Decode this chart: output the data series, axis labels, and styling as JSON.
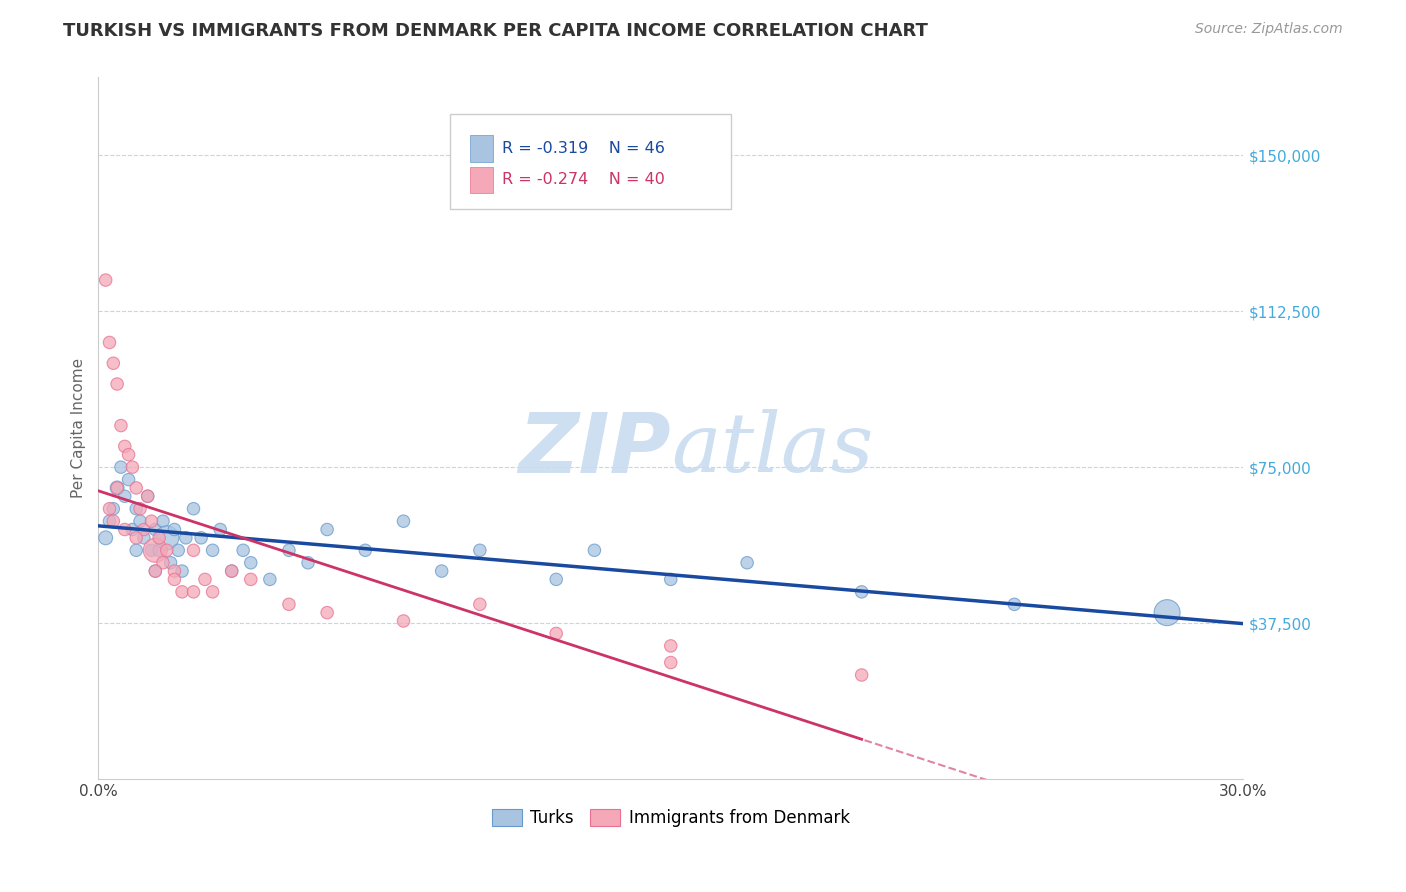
{
  "title": "TURKISH VS IMMIGRANTS FROM DENMARK PER CAPITA INCOME CORRELATION CHART",
  "source": "Source: ZipAtlas.com",
  "ylabel": "Per Capita Income",
  "xlim": [
    0.0,
    0.3
  ],
  "ylim": [
    0,
    168750
  ],
  "yticks": [
    0,
    37500,
    75000,
    112500,
    150000
  ],
  "ytick_labels": [
    "",
    "$37,500",
    "$75,000",
    "$112,500",
    "$150,000"
  ],
  "xticks": [
    0.0,
    0.05,
    0.1,
    0.15,
    0.2,
    0.25,
    0.3
  ],
  "xtick_labels": [
    "0.0%",
    "",
    "",
    "",
    "",
    "",
    "30.0%"
  ],
  "legend1_R": "-0.319",
  "legend1_N": "46",
  "legend2_R": "-0.274",
  "legend2_N": "40",
  "blue_color": "#A8C4E0",
  "pink_color": "#F4A8B8",
  "blue_edge_color": "#6699CC",
  "pink_edge_color": "#E87090",
  "blue_line_color": "#1A4AA0",
  "pink_line_color": "#CC3366",
  "watermark_color": "#C8DCF0",
  "turks_x": [
    0.002,
    0.003,
    0.004,
    0.005,
    0.006,
    0.007,
    0.008,
    0.009,
    0.01,
    0.01,
    0.011,
    0.012,
    0.013,
    0.014,
    0.015,
    0.015,
    0.016,
    0.017,
    0.018,
    0.019,
    0.02,
    0.021,
    0.022,
    0.023,
    0.025,
    0.027,
    0.03,
    0.032,
    0.035,
    0.038,
    0.04,
    0.045,
    0.05,
    0.055,
    0.06,
    0.07,
    0.08,
    0.09,
    0.1,
    0.12,
    0.13,
    0.15,
    0.17,
    0.2,
    0.24,
    0.28
  ],
  "turks_y": [
    58000,
    62000,
    65000,
    70000,
    75000,
    68000,
    72000,
    60000,
    65000,
    55000,
    62000,
    58000,
    68000,
    55000,
    60000,
    50000,
    55000,
    62000,
    58000,
    52000,
    60000,
    55000,
    50000,
    58000,
    65000,
    58000,
    55000,
    60000,
    50000,
    55000,
    52000,
    48000,
    55000,
    52000,
    60000,
    55000,
    62000,
    50000,
    55000,
    48000,
    55000,
    48000,
    52000,
    45000,
    42000,
    40000
  ],
  "turks_sizes": [
    100,
    80,
    80,
    100,
    80,
    80,
    80,
    80,
    80,
    80,
    80,
    80,
    80,
    80,
    80,
    80,
    80,
    80,
    300,
    80,
    80,
    80,
    80,
    80,
    80,
    80,
    80,
    80,
    80,
    80,
    80,
    80,
    80,
    80,
    80,
    80,
    80,
    80,
    80,
    80,
    80,
    80,
    80,
    80,
    80,
    350
  ],
  "denmark_x": [
    0.002,
    0.003,
    0.004,
    0.005,
    0.006,
    0.007,
    0.008,
    0.009,
    0.01,
    0.011,
    0.012,
    0.013,
    0.014,
    0.015,
    0.016,
    0.017,
    0.018,
    0.02,
    0.022,
    0.025,
    0.028,
    0.03,
    0.035,
    0.04,
    0.05,
    0.06,
    0.08,
    0.1,
    0.12,
    0.15,
    0.003,
    0.004,
    0.005,
    0.007,
    0.01,
    0.015,
    0.02,
    0.025,
    0.15,
    0.2
  ],
  "denmark_y": [
    120000,
    105000,
    100000,
    95000,
    85000,
    80000,
    78000,
    75000,
    70000,
    65000,
    60000,
    68000,
    62000,
    55000,
    58000,
    52000,
    55000,
    50000,
    45000,
    55000,
    48000,
    45000,
    50000,
    48000,
    42000,
    40000,
    38000,
    42000,
    35000,
    32000,
    65000,
    62000,
    70000,
    60000,
    58000,
    50000,
    48000,
    45000,
    28000,
    25000
  ],
  "denmark_sizes": [
    80,
    80,
    80,
    80,
    80,
    80,
    80,
    80,
    80,
    80,
    80,
    80,
    80,
    300,
    80,
    80,
    80,
    80,
    80,
    80,
    80,
    80,
    80,
    80,
    80,
    80,
    80,
    80,
    80,
    80,
    80,
    80,
    80,
    80,
    80,
    80,
    80,
    80,
    80,
    80
  ]
}
